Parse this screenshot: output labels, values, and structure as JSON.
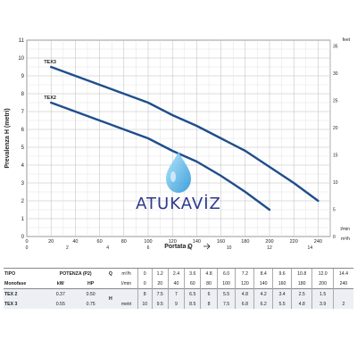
{
  "chart_data": {
    "type": "line",
    "x_ticks": [
      0,
      20,
      40,
      60,
      80,
      100,
      120,
      140,
      160,
      180,
      200,
      220,
      240
    ],
    "x_unit": "l/min",
    "x_ticks_m3h": [
      "0",
      "2",
      "4",
      "6",
      "8",
      "10",
      "12",
      "14"
    ],
    "x_unit_m3h": "m³/h",
    "y_ticks": [
      0,
      1,
      2,
      3,
      4,
      5,
      6,
      7,
      8,
      9,
      10,
      11
    ],
    "y_ticks_feet": [
      "0",
      "5",
      "10",
      "15",
      "20",
      "25",
      "30",
      "35"
    ],
    "y_unit_feet": "feet",
    "xlim": [
      0,
      250
    ],
    "ylim": [
      0,
      11
    ],
    "xlabel": "Portata Q",
    "ylabel": "Prevalenza H (metri)",
    "grid": true,
    "series": [
      {
        "name": "TEX3",
        "color": "#1f4e8c",
        "x": [
          20,
          40,
          60,
          80,
          100,
          120,
          140,
          160,
          180,
          200,
          220,
          240
        ],
        "y": [
          9.5,
          9.0,
          8.5,
          8.0,
          7.5,
          6.8,
          6.2,
          5.5,
          4.8,
          3.9,
          3.0,
          2.0
        ]
      },
      {
        "name": "TEX2",
        "color": "#1f4e8c",
        "x": [
          20,
          40,
          60,
          80,
          100,
          120,
          140,
          160,
          180,
          200
        ],
        "y": [
          7.5,
          7.0,
          6.5,
          6.0,
          5.5,
          4.8,
          4.2,
          3.4,
          2.5,
          1.5
        ]
      }
    ]
  },
  "watermark": {
    "text": "ATUKAVİZ",
    "color": "#2d3a8c"
  },
  "table": {
    "tipo": "TIPO",
    "monofase": "Monofase",
    "potenza": "POTENZA (P2)",
    "kw": "kW",
    "hp": "HP",
    "q": "Q",
    "h": "H",
    "metri": "metri",
    "m3h_unit": "m³/h",
    "lmin_unit": "l/min",
    "m3h": [
      "0",
      "1.2",
      "2.4",
      "3.6",
      "4.8",
      "6.0",
      "7.2",
      "8.4",
      "9.6",
      "10.8",
      "12.0",
      "14.4"
    ],
    "lmin": [
      "0",
      "20",
      "40",
      "60",
      "80",
      "100",
      "120",
      "140",
      "160",
      "180",
      "200",
      "240"
    ],
    "rows": [
      {
        "name": "TEX 2",
        "kw": "0.37",
        "hp": "0.50",
        "values": [
          "8",
          "7.5",
          "7",
          "6.5",
          "6",
          "5.5",
          "4.8",
          "4.2",
          "3.4",
          "2.5",
          "1.5",
          ""
        ]
      },
      {
        "name": "TEX 3",
        "kw": "0.55",
        "hp": "0.75",
        "values": [
          "10",
          "9.5",
          "9",
          "8.5",
          "8",
          "7.5",
          "6.8",
          "6.2",
          "5.5",
          "4.8",
          "3.9",
          "2"
        ]
      }
    ]
  }
}
